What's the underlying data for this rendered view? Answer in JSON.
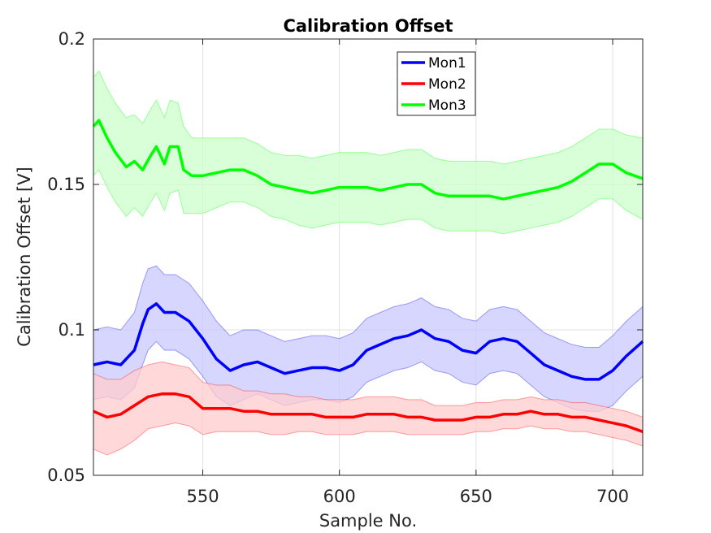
{
  "chart_data": {
    "type": "line",
    "title": "Calibration Offset",
    "xlabel": "Sample No.",
    "ylabel": "Calibration Offset [V]",
    "xlim": [
      510,
      711
    ],
    "ylim": [
      0.05,
      0.2
    ],
    "xticks": [
      "550",
      "600",
      "650",
      "700"
    ],
    "yticks": [
      "0.05",
      "0.1",
      "0.15",
      "0.2"
    ],
    "grid": true,
    "legend_position": "top-center",
    "series": [
      {
        "name": "Mon1",
        "color": "#0000ff",
        "band_fill": "#c8c8ff",
        "points": [
          [
            510,
            0.088
          ],
          [
            515,
            0.089
          ],
          [
            520,
            0.088
          ],
          [
            525,
            0.093
          ],
          [
            528,
            0.102
          ],
          [
            530,
            0.107
          ],
          [
            533,
            0.109
          ],
          [
            536,
            0.106
          ],
          [
            540,
            0.106
          ],
          [
            545,
            0.103
          ],
          [
            550,
            0.097
          ],
          [
            555,
            0.09
          ],
          [
            560,
            0.086
          ],
          [
            565,
            0.088
          ],
          [
            570,
            0.089
          ],
          [
            575,
            0.087
          ],
          [
            580,
            0.085
          ],
          [
            585,
            0.086
          ],
          [
            590,
            0.087
          ],
          [
            595,
            0.087
          ],
          [
            600,
            0.086
          ],
          [
            605,
            0.088
          ],
          [
            610,
            0.093
          ],
          [
            615,
            0.095
          ],
          [
            620,
            0.097
          ],
          [
            625,
            0.098
          ],
          [
            630,
            0.1
          ],
          [
            635,
            0.097
          ],
          [
            640,
            0.096
          ],
          [
            645,
            0.093
          ],
          [
            650,
            0.092
          ],
          [
            655,
            0.096
          ],
          [
            660,
            0.097
          ],
          [
            665,
            0.096
          ],
          [
            670,
            0.092
          ],
          [
            675,
            0.088
          ],
          [
            680,
            0.086
          ],
          [
            685,
            0.084
          ],
          [
            690,
            0.083
          ],
          [
            695,
            0.083
          ],
          [
            700,
            0.086
          ],
          [
            705,
            0.091
          ],
          [
            711,
            0.096
          ]
        ],
        "band": [
          0.012,
          0.012,
          0.012,
          0.013,
          0.014,
          0.014,
          0.013,
          0.013,
          0.013,
          0.013,
          0.013,
          0.013,
          0.012,
          0.012,
          0.011,
          0.011,
          0.011,
          0.011,
          0.011,
          0.011,
          0.011,
          0.011,
          0.011,
          0.011,
          0.011,
          0.011,
          0.011,
          0.011,
          0.011,
          0.011,
          0.011,
          0.011,
          0.011,
          0.011,
          0.011,
          0.011,
          0.011,
          0.011,
          0.011,
          0.011,
          0.012,
          0.012,
          0.012
        ]
      },
      {
        "name": "Mon2",
        "color": "#ff0000",
        "band_fill": "#ffcccc",
        "points": [
          [
            510,
            0.072
          ],
          [
            515,
            0.07
          ],
          [
            520,
            0.071
          ],
          [
            525,
            0.074
          ],
          [
            530,
            0.077
          ],
          [
            535,
            0.078
          ],
          [
            540,
            0.078
          ],
          [
            545,
            0.077
          ],
          [
            550,
            0.073
          ],
          [
            555,
            0.073
          ],
          [
            560,
            0.073
          ],
          [
            565,
            0.072
          ],
          [
            570,
            0.072
          ],
          [
            575,
            0.071
          ],
          [
            580,
            0.071
          ],
          [
            585,
            0.071
          ],
          [
            590,
            0.071
          ],
          [
            595,
            0.07
          ],
          [
            600,
            0.07
          ],
          [
            605,
            0.07
          ],
          [
            610,
            0.071
          ],
          [
            615,
            0.071
          ],
          [
            620,
            0.071
          ],
          [
            625,
            0.07
          ],
          [
            630,
            0.07
          ],
          [
            635,
            0.069
          ],
          [
            640,
            0.069
          ],
          [
            645,
            0.069
          ],
          [
            650,
            0.07
          ],
          [
            655,
            0.07
          ],
          [
            660,
            0.071
          ],
          [
            665,
            0.071
          ],
          [
            670,
            0.072
          ],
          [
            675,
            0.071
          ],
          [
            680,
            0.071
          ],
          [
            685,
            0.07
          ],
          [
            690,
            0.07
          ],
          [
            695,
            0.069
          ],
          [
            700,
            0.068
          ],
          [
            705,
            0.067
          ],
          [
            711,
            0.065
          ]
        ],
        "band": [
          0.013,
          0.013,
          0.012,
          0.012,
          0.011,
          0.011,
          0.01,
          0.01,
          0.009,
          0.008,
          0.008,
          0.007,
          0.007,
          0.007,
          0.007,
          0.006,
          0.006,
          0.006,
          0.006,
          0.006,
          0.006,
          0.006,
          0.006,
          0.006,
          0.006,
          0.005,
          0.005,
          0.005,
          0.005,
          0.005,
          0.005,
          0.005,
          0.005,
          0.005,
          0.005,
          0.005,
          0.005,
          0.005,
          0.005,
          0.005,
          0.005
        ]
      },
      {
        "name": "Mon3",
        "color": "#00ff00",
        "band_fill": "#ccffcc",
        "points": [
          [
            510,
            0.17
          ],
          [
            512,
            0.172
          ],
          [
            515,
            0.166
          ],
          [
            518,
            0.161
          ],
          [
            522,
            0.156
          ],
          [
            525,
            0.158
          ],
          [
            528,
            0.155
          ],
          [
            531,
            0.16
          ],
          [
            533,
            0.163
          ],
          [
            536,
            0.157
          ],
          [
            538,
            0.163
          ],
          [
            541,
            0.163
          ],
          [
            543,
            0.155
          ],
          [
            546,
            0.153
          ],
          [
            550,
            0.153
          ],
          [
            555,
            0.154
          ],
          [
            560,
            0.155
          ],
          [
            565,
            0.155
          ],
          [
            570,
            0.153
          ],
          [
            575,
            0.15
          ],
          [
            580,
            0.149
          ],
          [
            585,
            0.148
          ],
          [
            590,
            0.147
          ],
          [
            595,
            0.148
          ],
          [
            600,
            0.149
          ],
          [
            605,
            0.149
          ],
          [
            610,
            0.149
          ],
          [
            615,
            0.148
          ],
          [
            620,
            0.149
          ],
          [
            625,
            0.15
          ],
          [
            630,
            0.15
          ],
          [
            635,
            0.147
          ],
          [
            640,
            0.146
          ],
          [
            645,
            0.146
          ],
          [
            650,
            0.146
          ],
          [
            655,
            0.146
          ],
          [
            660,
            0.145
          ],
          [
            665,
            0.146
          ],
          [
            670,
            0.147
          ],
          [
            675,
            0.148
          ],
          [
            680,
            0.149
          ],
          [
            685,
            0.151
          ],
          [
            690,
            0.154
          ],
          [
            695,
            0.157
          ],
          [
            700,
            0.157
          ],
          [
            705,
            0.154
          ],
          [
            711,
            0.152
          ]
        ],
        "band": [
          0.017,
          0.017,
          0.017,
          0.017,
          0.017,
          0.016,
          0.016,
          0.016,
          0.016,
          0.016,
          0.016,
          0.015,
          0.015,
          0.013,
          0.013,
          0.012,
          0.011,
          0.011,
          0.011,
          0.011,
          0.011,
          0.012,
          0.012,
          0.012,
          0.012,
          0.012,
          0.012,
          0.012,
          0.012,
          0.012,
          0.012,
          0.012,
          0.012,
          0.012,
          0.012,
          0.012,
          0.012,
          0.012,
          0.012,
          0.012,
          0.012,
          0.012,
          0.012,
          0.012,
          0.012,
          0.013,
          0.014
        ]
      }
    ]
  }
}
